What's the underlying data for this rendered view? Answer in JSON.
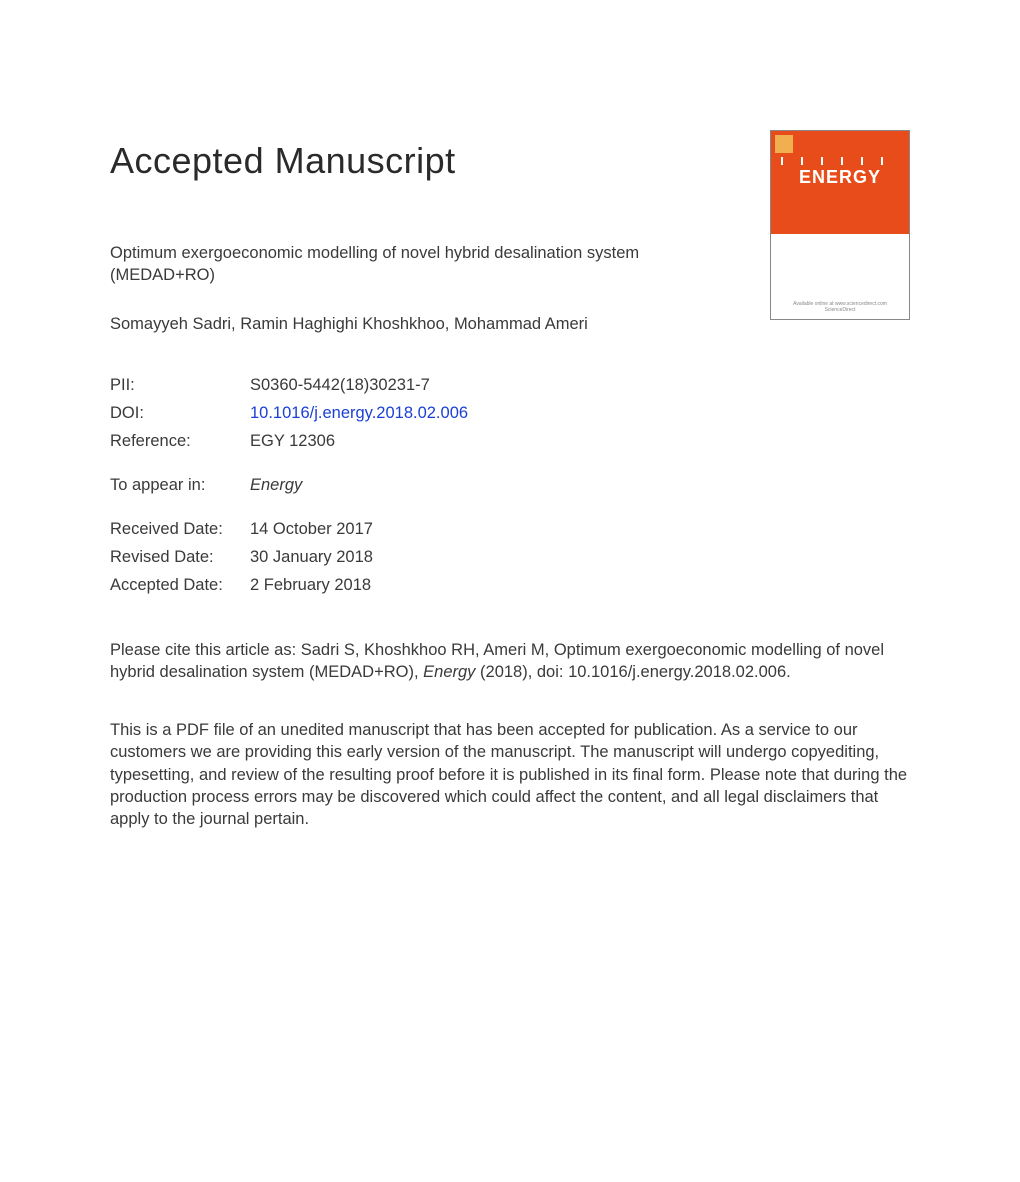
{
  "heading": "Accepted Manuscript",
  "journal_cover": {
    "title": "ENERGY",
    "accent_color": "#e84c1a",
    "footer_line1": "Available online at www.sciencedirect.com",
    "footer_line2": "ScienceDirect"
  },
  "article": {
    "title": "Optimum exergoeconomic modelling of novel hybrid desalination system (MEDAD+RO)",
    "authors": "Somayyeh Sadri, Ramin Haghighi Khoshkhoo, Mohammad Ameri"
  },
  "meta": {
    "pii_label": "PII:",
    "pii_value": "S0360-5442(18)30231-7",
    "doi_label": "DOI:",
    "doi_value": "10.1016/j.energy.2018.02.006",
    "reference_label": "Reference:",
    "reference_value": "EGY 12306",
    "toappear_label": "To appear in:",
    "toappear_value": "Energy",
    "received_label": "Received Date:",
    "received_value": "14 October 2017",
    "revised_label": "Revised Date:",
    "revised_value": "30 January 2018",
    "accepted_label": "Accepted Date:",
    "accepted_value": "2 February 2018"
  },
  "citation": {
    "prefix": "Please cite this article as: Sadri S, Khoshkhoo RH, Ameri M, Optimum exergoeconomic modelling of novel hybrid desalination system (MEDAD+RO), ",
    "journal": "Energy",
    "suffix": " (2018), doi: 10.1016/j.energy.2018.02.006."
  },
  "disclaimer": "This is a PDF file of an unedited manuscript that has been accepted for publication. As a service to our customers we are providing this early version of the manuscript. The manuscript will undergo copyediting, typesetting, and review of the resulting proof before it is published in its final form. Please note that during the production process errors may be discovered which could affect the content, and all legal disclaimers that apply to the journal pertain.",
  "colors": {
    "text": "#3a3a3a",
    "link": "#1a3fd6",
    "background": "#ffffff",
    "cover_accent": "#e84c1a"
  },
  "typography": {
    "heading_fontsize": 36,
    "body_fontsize": 16.5,
    "font_family": "Arial"
  }
}
